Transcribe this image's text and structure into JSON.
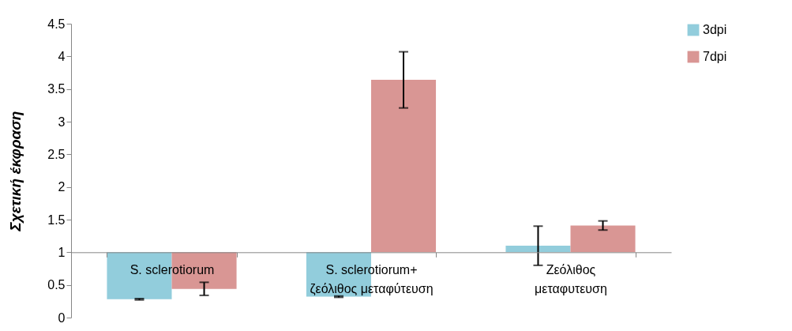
{
  "chart_data": {
    "type": "bar",
    "ylabel": "Σχετική έκφραση",
    "categories": [
      "S. sclerotiorum",
      "S. sclerotiorum+ ζεόλιθος μεταφύτευση",
      "Ζεόλιθος μεταφυτευση"
    ],
    "series": [
      {
        "name": "3dpi",
        "color": "#92cddc",
        "base": [
          1,
          1,
          1
        ],
        "values": [
          -0.72,
          -0.68,
          0.1
        ],
        "errors": [
          0.01,
          0.01,
          0.3
        ]
      },
      {
        "name": "7dpi",
        "color": "#d99694",
        "base": [
          1,
          1,
          1
        ],
        "values": [
          -0.56,
          2.64,
          0.41
        ],
        "errors": [
          0.1,
          0.43,
          0.07
        ]
      }
    ],
    "ylim": [
      0,
      4.5
    ],
    "yticks": [
      0,
      0.5,
      1,
      1.5,
      2,
      2.5,
      3,
      3.5,
      4,
      4.5
    ],
    "grid": false,
    "legend": "right"
  }
}
